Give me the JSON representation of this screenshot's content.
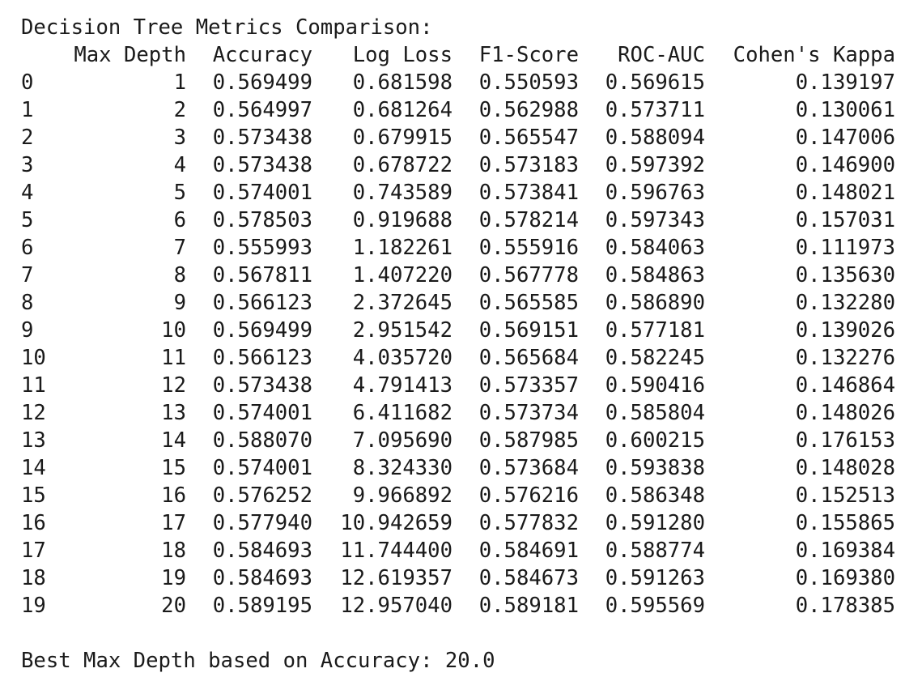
{
  "title": "Decision Tree Metrics Comparison:",
  "columns": [
    "",
    "Max Depth",
    "Accuracy",
    "Log Loss",
    "F1-Score",
    "ROC-AUC",
    "Cohen's Kappa"
  ],
  "rows": [
    [
      "0",
      "1",
      "0.569499",
      "0.681598",
      "0.550593",
      "0.569615",
      "0.139197"
    ],
    [
      "1",
      "2",
      "0.564997",
      "0.681264",
      "0.562988",
      "0.573711",
      "0.130061"
    ],
    [
      "2",
      "3",
      "0.573438",
      "0.679915",
      "0.565547",
      "0.588094",
      "0.147006"
    ],
    [
      "3",
      "4",
      "0.573438",
      "0.678722",
      "0.573183",
      "0.597392",
      "0.146900"
    ],
    [
      "4",
      "5",
      "0.574001",
      "0.743589",
      "0.573841",
      "0.596763",
      "0.148021"
    ],
    [
      "5",
      "6",
      "0.578503",
      "0.919688",
      "0.578214",
      "0.597343",
      "0.157031"
    ],
    [
      "6",
      "7",
      "0.555993",
      "1.182261",
      "0.555916",
      "0.584063",
      "0.111973"
    ],
    [
      "7",
      "8",
      "0.567811",
      "1.407220",
      "0.567778",
      "0.584863",
      "0.135630"
    ],
    [
      "8",
      "9",
      "0.566123",
      "2.372645",
      "0.565585",
      "0.586890",
      "0.132280"
    ],
    [
      "9",
      "10",
      "0.569499",
      "2.951542",
      "0.569151",
      "0.577181",
      "0.139026"
    ],
    [
      "10",
      "11",
      "0.566123",
      "4.035720",
      "0.565684",
      "0.582245",
      "0.132276"
    ],
    [
      "11",
      "12",
      "0.573438",
      "4.791413",
      "0.573357",
      "0.590416",
      "0.146864"
    ],
    [
      "12",
      "13",
      "0.574001",
      "6.411682",
      "0.573734",
      "0.585804",
      "0.148026"
    ],
    [
      "13",
      "14",
      "0.588070",
      "7.095690",
      "0.587985",
      "0.600215",
      "0.176153"
    ],
    [
      "14",
      "15",
      "0.574001",
      "8.324330",
      "0.573684",
      "0.593838",
      "0.148028"
    ],
    [
      "15",
      "16",
      "0.576252",
      "9.966892",
      "0.576216",
      "0.586348",
      "0.152513"
    ],
    [
      "16",
      "17",
      "0.577940",
      "10.942659",
      "0.577832",
      "0.591280",
      "0.155865"
    ],
    [
      "17",
      "18",
      "0.584693",
      "11.744400",
      "0.584691",
      "0.588774",
      "0.169384"
    ],
    [
      "18",
      "19",
      "0.584693",
      "12.619357",
      "0.584673",
      "0.591263",
      "0.169380"
    ],
    [
      "19",
      "20",
      "0.589195",
      "12.957040",
      "0.589181",
      "0.595569",
      "0.178385"
    ]
  ],
  "footer": "Best Max Depth based on Accuracy: 20.0"
}
